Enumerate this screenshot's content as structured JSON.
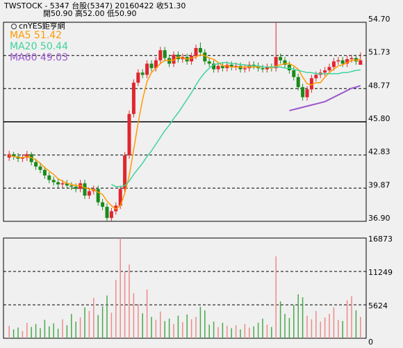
{
  "chart_data": {
    "type": "candlestick",
    "title": "TWSTOCK - 5347 台股(5347) 20160422 收51.30",
    "subtitle": "開50.90 高52.00 低50.90",
    "source": "cnYES鉅亨網",
    "up_color": "#e0262e",
    "down_color": "#1a8a1a",
    "volume_up_color": "#ee8a8a",
    "volume_down_color": "#4aa84a",
    "grid": true,
    "ylim": [
      36.9,
      54.7
    ],
    "yticks": [
      {
        "value": 36.9,
        "label": "36.90"
      },
      39.87,
      42.83,
      {
        "value": 45.8,
        "label": "45.80"
      },
      48.77,
      51.73,
      {
        "value": 54.7,
        "label": "54.70"
      }
    ],
    "y2lim": [
      0,
      16873
    ],
    "y2ticks": [
      0,
      5624,
      11249,
      16873
    ],
    "open": [
      42.6,
      42.9,
      42.7,
      42.5,
      42.6,
      42.9,
      42.2,
      41.8,
      41.5,
      41.0,
      40.6,
      40.4,
      40.2,
      40.3,
      40.1,
      40.0,
      39.8,
      40.3,
      39.2,
      39.6,
      39.8,
      38.6,
      38.2,
      37.2,
      37.8,
      38.3,
      39.8,
      42.8,
      46.5,
      49.3,
      50.2,
      50.0,
      51.0,
      50.6,
      51.3,
      52.2,
      51.5,
      51.0,
      51.8,
      51.4,
      51.6,
      51.2,
      51.7,
      52.4,
      52.0,
      51.2,
      51.0,
      50.5,
      50.8,
      50.6,
      50.9,
      50.7,
      50.8,
      50.5,
      50.6,
      50.9,
      50.8,
      50.6,
      50.5,
      50.7,
      50.6,
      51.6,
      51.3,
      50.9,
      50.4,
      49.8,
      48.9,
      48.0,
      48.7,
      49.7,
      50.0,
      50.2,
      50.4,
      50.7,
      51.2,
      51.3,
      51.0,
      51.4,
      51.5,
      50.9
    ],
    "high": [
      43.2,
      43.1,
      43.0,
      42.9,
      43.2,
      43.1,
      42.5,
      42.1,
      41.8,
      41.3,
      40.9,
      40.7,
      40.6,
      40.6,
      40.4,
      40.3,
      40.6,
      40.6,
      39.9,
      40.1,
      40.1,
      38.9,
      38.5,
      38.1,
      38.6,
      40.1,
      43.1,
      46.8,
      49.6,
      50.5,
      50.5,
      51.3,
      51.3,
      51.6,
      52.5,
      52.5,
      51.8,
      52.1,
      52.1,
      51.9,
      51.9,
      52.0,
      52.7,
      52.9,
      52.3,
      51.5,
      51.3,
      51.1,
      51.1,
      51.2,
      51.2,
      51.1,
      51.1,
      50.9,
      51.2,
      51.2,
      51.1,
      50.9,
      51.0,
      51.0,
      54.7,
      51.9,
      51.6,
      51.2,
      50.7,
      50.1,
      49.2,
      49.0,
      50.0,
      50.3,
      50.5,
      50.7,
      51.0,
      51.5,
      51.6,
      51.6,
      51.7,
      51.8,
      51.8,
      52.0
    ],
    "low": [
      42.3,
      42.4,
      42.2,
      42.2,
      42.3,
      41.9,
      41.5,
      41.2,
      40.7,
      40.3,
      40.1,
      39.9,
      39.9,
      39.8,
      39.7,
      39.5,
      39.5,
      38.9,
      38.9,
      39.3,
      38.3,
      37.9,
      36.9,
      36.9,
      37.5,
      38.0,
      39.5,
      42.5,
      46.2,
      49.0,
      49.7,
      49.7,
      50.3,
      50.3,
      51.0,
      51.2,
      50.7,
      50.7,
      51.1,
      51.1,
      50.9,
      50.9,
      51.4,
      51.7,
      50.9,
      50.7,
      50.2,
      50.2,
      50.3,
      50.3,
      50.4,
      50.4,
      50.2,
      50.2,
      50.3,
      50.5,
      50.3,
      50.2,
      50.2,
      50.3,
      50.3,
      51.0,
      50.6,
      50.1,
      49.5,
      48.6,
      47.7,
      47.7,
      48.4,
      49.4,
      49.7,
      49.9,
      50.1,
      50.4,
      50.9,
      50.7,
      50.7,
      51.1,
      50.9,
      50.9
    ],
    "close": [
      42.9,
      42.7,
      42.5,
      42.6,
      42.9,
      42.2,
      41.8,
      41.5,
      41.0,
      40.6,
      40.4,
      40.2,
      40.3,
      40.1,
      40.0,
      39.8,
      40.3,
      39.2,
      39.6,
      39.8,
      38.6,
      38.2,
      37.2,
      37.8,
      38.3,
      39.8,
      42.8,
      46.5,
      49.3,
      50.2,
      50.0,
      51.0,
      50.6,
      51.3,
      52.2,
      51.5,
      51.0,
      51.8,
      51.4,
      51.6,
      51.2,
      51.7,
      52.4,
      52.0,
      51.2,
      51.0,
      50.5,
      50.8,
      50.6,
      50.9,
      50.7,
      50.8,
      50.5,
      50.6,
      50.9,
      50.8,
      50.6,
      50.5,
      50.7,
      50.6,
      51.6,
      51.3,
      50.9,
      50.4,
      49.8,
      48.9,
      48.0,
      48.7,
      49.7,
      50.0,
      50.2,
      50.4,
      50.7,
      51.2,
      51.3,
      51.0,
      51.4,
      51.5,
      51.2,
      51.3
    ],
    "volume": [
      2100,
      1500,
      1800,
      1200,
      2600,
      1900,
      2400,
      1700,
      3100,
      2000,
      2500,
      1600,
      3200,
      2200,
      4100,
      2800,
      3500,
      5200,
      4600,
      6800,
      3900,
      5400,
      7200,
      4300,
      9800,
      16873,
      11200,
      12400,
      7600,
      5800,
      4200,
      8200,
      3600,
      3100,
      4500,
      2900,
      3300,
      2400,
      3800,
      2700,
      4000,
      3200,
      3600,
      5300,
      4700,
      2300,
      2800,
      1900,
      2600,
      2100,
      1700,
      2200,
      1500,
      2400,
      1800,
      2000,
      2600,
      3300,
      2300,
      1900,
      13800,
      6200,
      4100,
      3400,
      5600,
      7400,
      6900,
      3800,
      3200,
      4600,
      2800,
      3500,
      4100,
      5200,
      3100,
      2900,
      6400,
      7100,
      4700,
      3600
    ],
    "series": [
      {
        "name": "MA5 51.42",
        "color": "#ff9900",
        "values": [
          42.8,
          42.7,
          42.6,
          42.6,
          42.7,
          42.6,
          42.4,
          42.1,
          41.7,
          41.4,
          41.1,
          40.7,
          40.5,
          40.3,
          40.2,
          40.1,
          40.1,
          39.9,
          39.8,
          39.7,
          39.5,
          39.3,
          38.7,
          38.3,
          38.0,
          38.3,
          39.4,
          41.0,
          43.3,
          45.7,
          47.8,
          49.4,
          50.2,
          50.6,
          51.0,
          51.3,
          51.3,
          51.3,
          51.6,
          51.5,
          51.4,
          51.5,
          51.6,
          51.8,
          51.7,
          51.5,
          51.4,
          51.1,
          50.8,
          50.8,
          50.7,
          50.7,
          50.7,
          50.7,
          50.7,
          50.7,
          50.7,
          50.7,
          50.7,
          50.6,
          50.8,
          50.9,
          51.0,
          51.0,
          50.8,
          50.5,
          49.8,
          49.2,
          49.1,
          49.3,
          49.3,
          49.8,
          50.2,
          50.5,
          50.8,
          50.9,
          51.1,
          51.3,
          51.3,
          51.42
        ]
      },
      {
        "name": "MA20 50.44",
        "color": "#3fd39a",
        "values": [
          null,
          null,
          null,
          null,
          null,
          null,
          null,
          null,
          null,
          null,
          null,
          null,
          null,
          null,
          null,
          null,
          null,
          null,
          null,
          null,
          null,
          null,
          null,
          40.2,
          40.0,
          40.0,
          40.1,
          40.5,
          41.1,
          41.6,
          42.1,
          42.7,
          43.2,
          43.8,
          44.4,
          45.0,
          45.5,
          46.1,
          46.6,
          47.2,
          47.8,
          48.4,
          49.1,
          49.7,
          50.2,
          50.6,
          50.9,
          51.0,
          51.1,
          51.1,
          51.0,
          51.0,
          50.9,
          50.9,
          50.8,
          50.8,
          50.8,
          50.7,
          50.7,
          50.7,
          50.7,
          50.7,
          50.6,
          50.6,
          50.5,
          50.4,
          50.3,
          50.2,
          50.2,
          50.1,
          50.1,
          50.1,
          50.1,
          50.1,
          50.1,
          50.2,
          50.2,
          50.3,
          50.4,
          50.44
        ]
      },
      {
        "name": "MA60 49.03",
        "color": "#9955cc",
        "values": [
          null,
          null,
          null,
          null,
          null,
          null,
          null,
          null,
          null,
          null,
          null,
          null,
          null,
          null,
          null,
          null,
          null,
          null,
          null,
          null,
          null,
          null,
          null,
          null,
          null,
          null,
          null,
          null,
          null,
          null,
          null,
          null,
          null,
          null,
          null,
          null,
          null,
          null,
          null,
          null,
          null,
          null,
          null,
          null,
          null,
          null,
          null,
          null,
          null,
          null,
          null,
          null,
          null,
          null,
          null,
          null,
          null,
          null,
          null,
          null,
          null,
          null,
          null,
          46.8,
          46.9,
          47.0,
          47.1,
          47.2,
          47.3,
          47.4,
          47.5,
          47.6,
          47.8,
          48.0,
          48.2,
          48.4,
          48.6,
          48.8,
          48.9,
          49.03
        ]
      }
    ]
  }
}
